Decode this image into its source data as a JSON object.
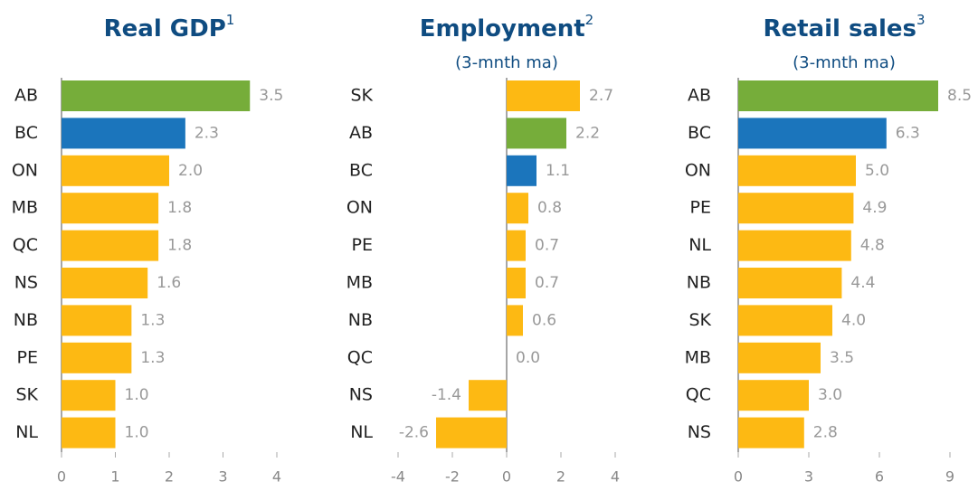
{
  "chart_data": [
    {
      "type": "bar",
      "orientation": "horizontal",
      "title": "Real GDP",
      "title_superscript": "1",
      "categories": [
        "AB",
        "BC",
        "ON",
        "MB",
        "QC",
        "NS",
        "NB",
        "PE",
        "SK",
        "NL"
      ],
      "values": [
        3.5,
        2.3,
        2.0,
        1.8,
        1.8,
        1.6,
        1.3,
        1.3,
        1.0,
        1.0
      ],
      "value_labels": [
        "3.5",
        "2.3",
        "2.0",
        "1.8",
        "1.8",
        "1.6",
        "1.3",
        "1.3",
        "1.0",
        "1.0"
      ],
      "colors": [
        "#76ad3a",
        "#1b75bc",
        "#fdb913",
        "#fdb913",
        "#fdb913",
        "#fdb913",
        "#fdb913",
        "#fdb913",
        "#fdb913",
        "#fdb913"
      ],
      "xlim": [
        0,
        4
      ],
      "xticks": [
        0,
        1,
        2,
        3,
        4
      ]
    },
    {
      "type": "bar",
      "orientation": "horizontal",
      "title": "Employment",
      "title_superscript": "2",
      "subtitle": "(3-mnth ma)",
      "categories": [
        "SK",
        "AB",
        "BC",
        "ON",
        "PE",
        "MB",
        "NB",
        "QC",
        "NS",
        "NL"
      ],
      "values": [
        2.7,
        2.2,
        1.1,
        0.8,
        0.7,
        0.7,
        0.6,
        0.0,
        -1.4,
        -2.6
      ],
      "value_labels": [
        "2.7",
        "2.2",
        "1.1",
        "0.8",
        "0.7",
        "0.7",
        "0.6",
        "0.0",
        "-1.4",
        "-2.6"
      ],
      "colors": [
        "#fdb913",
        "#76ad3a",
        "#1b75bc",
        "#fdb913",
        "#fdb913",
        "#fdb913",
        "#fdb913",
        "#fdb913",
        "#fdb913",
        "#fdb913"
      ],
      "xlim": [
        -4,
        4
      ],
      "xticks": [
        -4,
        -2,
        0,
        2,
        4
      ]
    },
    {
      "type": "bar",
      "orientation": "horizontal",
      "title": "Retail sales",
      "title_superscript": "3",
      "subtitle": "(3-mnth ma)",
      "categories": [
        "AB",
        "BC",
        "ON",
        "PE",
        "NL",
        "NB",
        "SK",
        "MB",
        "QC",
        "NS"
      ],
      "values": [
        8.5,
        6.3,
        5.0,
        4.9,
        4.8,
        4.4,
        4.0,
        3.5,
        3.0,
        2.8
      ],
      "value_labels": [
        "8.5",
        "6.3",
        "5.0",
        "4.9",
        "4.8",
        "4.4",
        "4.0",
        "3.5",
        "3.0",
        "2.8"
      ],
      "colors": [
        "#76ad3a",
        "#1b75bc",
        "#fdb913",
        "#fdb913",
        "#fdb913",
        "#fdb913",
        "#fdb913",
        "#fdb913",
        "#fdb913",
        "#fdb913"
      ],
      "xlim": [
        0,
        9
      ],
      "xticks": [
        0,
        3,
        6,
        9
      ]
    }
  ]
}
